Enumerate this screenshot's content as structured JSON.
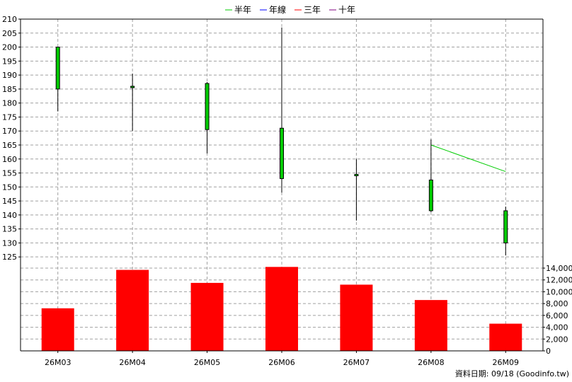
{
  "chart_data": {
    "type": "candlestick",
    "legend": [
      {
        "name": "半年",
        "color": "#00cc00"
      },
      {
        "name": "年線",
        "color": "#0000ff"
      },
      {
        "name": "三年",
        "color": "#ff0000"
      },
      {
        "name": "十年",
        "color": "#800080"
      }
    ],
    "legend_placement": "top-center",
    "categories": [
      "26M03",
      "26M04",
      "26M05",
      "26M06",
      "26M07",
      "26M08",
      "26M09"
    ],
    "price_axis": {
      "ylim": [
        121,
        210
      ],
      "ticks": [
        125,
        130,
        135,
        140,
        145,
        150,
        155,
        160,
        165,
        170,
        175,
        180,
        185,
        190,
        195,
        200,
        205,
        210
      ],
      "position": "left"
    },
    "volume_axis": {
      "ylim": [
        0,
        14000
      ],
      "ticks": [
        "0",
        "2,000",
        "4,000",
        "6,000",
        "8,000",
        "10,000",
        "12,000",
        "14,000"
      ],
      "position": "right"
    },
    "candles": [
      {
        "open": 185,
        "close": 200,
        "high": 200,
        "low": 177
      },
      {
        "open": 185.5,
        "close": 186,
        "high": 190.5,
        "low": 170
      },
      {
        "open": 170.5,
        "close": 187,
        "high": 187.5,
        "low": 162
      },
      {
        "open": 153,
        "close": 171,
        "high": 207,
        "low": 148
      },
      {
        "open": 154,
        "close": 154.5,
        "high": 160,
        "low": 138
      },
      {
        "open": 141.5,
        "close": 152.5,
        "high": 167,
        "low": 141
      },
      {
        "open": 130,
        "close": 141.5,
        "high": 143,
        "low": 125.5
      }
    ],
    "series": [
      {
        "name": "半年",
        "color": "#00cc00",
        "values": [
          null,
          null,
          null,
          null,
          null,
          165,
          155.5
        ]
      }
    ],
    "volume": [
      7200,
      13700,
      11500,
      14200,
      11200,
      8600,
      4600
    ],
    "candle_color": "#00cc00",
    "volume_color": "#ff0000",
    "grid": true
  },
  "footer": {
    "source": "資料日期: 09/18  (Goodinfo.tw)"
  }
}
